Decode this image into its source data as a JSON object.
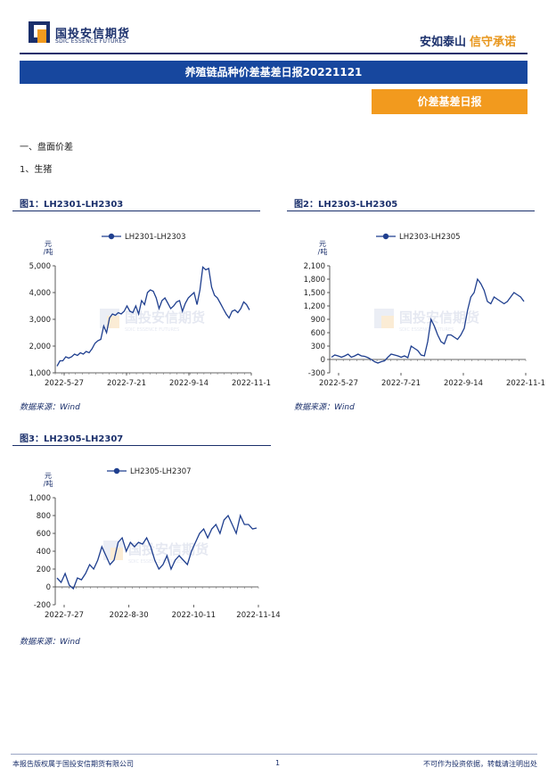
{
  "header": {
    "logo_cn": "国投安信期货",
    "logo_en": "SDIC ESSENCE FUTURES",
    "slogan_a": "安如泰山",
    "slogan_b": "信守承诺"
  },
  "report_title": "养殖链品种价差基差日报20221121",
  "tag_label": "价差基差日报",
  "sections": {
    "s1": "一、盘面价差",
    "s1_1": "1、生猪"
  },
  "watermark_cn": "国投安信期货",
  "watermark_en": "SDIC ESSENCE FUTURES",
  "figures": [
    {
      "title": "图1：LH2301-LH2303",
      "source": "数据来源：Wind"
    },
    {
      "title": "图2：LH2303-LH2305",
      "source": "数据来源：Wind"
    },
    {
      "title": "图3：LH2305-LH2307",
      "source": "数据来源：Wind"
    }
  ],
  "footer": {
    "left": "本报告版权属于国投安信期货有限公司",
    "page": "1",
    "right": "不可作为投资依据，转载请注明出处"
  },
  "colors": {
    "navy": "#1a2f6b",
    "blue": "#17479e",
    "orange": "#f29a1e",
    "line": "#1f3f8f"
  },
  "chart_data": [
    {
      "type": "line",
      "ylabel": "元/吨",
      "ylim": [
        1000,
        5000
      ],
      "yticks": [
        "1,000",
        "2,000",
        "3,000",
        "4,000",
        "5,000"
      ],
      "xticks": [
        "2022-5-27",
        "2022-7-21",
        "2022-9-14",
        "2022-11-1"
      ],
      "series": [
        {
          "name": "LH2301-LH2303",
          "values": [
            1250,
            1450,
            1450,
            1600,
            1550,
            1600,
            1700,
            1650,
            1750,
            1700,
            1800,
            1750,
            1900,
            2100,
            2200,
            2250,
            2750,
            2500,
            3050,
            3200,
            3150,
            3250,
            3200,
            3300,
            3500,
            3300,
            3250,
            3500,
            3200,
            3700,
            3550,
            4000,
            4100,
            4050,
            3800,
            3400,
            3700,
            3800,
            3600,
            3400,
            3500,
            3650,
            3700,
            3300,
            3600,
            3800,
            3900,
            4000,
            3550,
            4100,
            4950,
            4850,
            4900,
            4200,
            3900,
            3800,
            3600,
            3400,
            3200,
            3050,
            3300,
            3350,
            3250,
            3400,
            3650,
            3550,
            3350
          ]
        }
      ]
    },
    {
      "type": "line",
      "ylabel": "元/吨",
      "ylim": [
        -300,
        2100
      ],
      "yticks": [
        "-300",
        "0",
        "300",
        "600",
        "900",
        "1,200",
        "1,500",
        "1,800",
        "2,100"
      ],
      "xticks": [
        "2022-5-27",
        "2022-7-21",
        "2022-9-14",
        "2022-11-1"
      ],
      "series": [
        {
          "name": "LH2303-LH2305",
          "values": [
            50,
            100,
            80,
            50,
            80,
            120,
            50,
            80,
            120,
            80,
            70,
            40,
            0,
            -50,
            -80,
            -50,
            -30,
            50,
            120,
            100,
            80,
            50,
            80,
            40,
            300,
            250,
            200,
            100,
            80,
            400,
            900,
            750,
            550,
            400,
            350,
            550,
            550,
            500,
            450,
            550,
            700,
            1100,
            1400,
            1500,
            1800,
            1700,
            1550,
            1300,
            1250,
            1400,
            1350,
            1300,
            1250,
            1300,
            1400,
            1500,
            1450,
            1400,
            1300
          ]
        }
      ]
    },
    {
      "type": "line",
      "ylabel": "元/吨",
      "ylim": [
        -200,
        1000
      ],
      "yticks": [
        "-200",
        "0",
        "200",
        "400",
        "600",
        "800",
        "1,000"
      ],
      "xticks": [
        "2022-7-27",
        "2022-8-30",
        "2022-10-11",
        "2022-11-14"
      ],
      "series": [
        {
          "name": "LH2305-LH2307",
          "values": [
            100,
            50,
            150,
            20,
            -20,
            100,
            80,
            150,
            250,
            200,
            300,
            450,
            350,
            250,
            300,
            500,
            550,
            400,
            500,
            450,
            500,
            480,
            550,
            450,
            300,
            200,
            250,
            350,
            200,
            300,
            350,
            300,
            250,
            400,
            500,
            600,
            650,
            550,
            650,
            700,
            600,
            750,
            800,
            700,
            600,
            800,
            700,
            700,
            650,
            660
          ]
        }
      ]
    }
  ]
}
